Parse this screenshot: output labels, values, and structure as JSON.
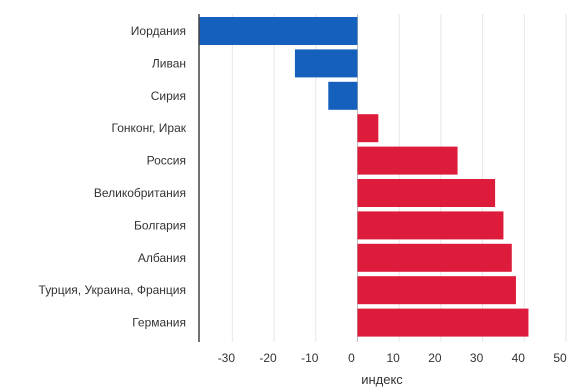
{
  "chart_data": {
    "type": "bar",
    "orientation": "horizontal",
    "categories": [
      "Иордания",
      "Ливан",
      "Сирия",
      "Гонконг, Ирак",
      "Россия",
      "Великобритания",
      "Болгария",
      "Албания",
      "Турция, Украина, Франция",
      "Германия"
    ],
    "values": [
      -38,
      -15,
      -7,
      5,
      24,
      33,
      35,
      37,
      38,
      41
    ],
    "xlabel": "индекс",
    "xlim": [
      -38,
      50
    ],
    "xticks": [
      -30,
      -20,
      -10,
      0,
      10,
      20,
      30,
      40,
      50
    ],
    "grid": true,
    "colors": {
      "negative": "#1560bd",
      "positive": "#dd1c3b"
    }
  }
}
